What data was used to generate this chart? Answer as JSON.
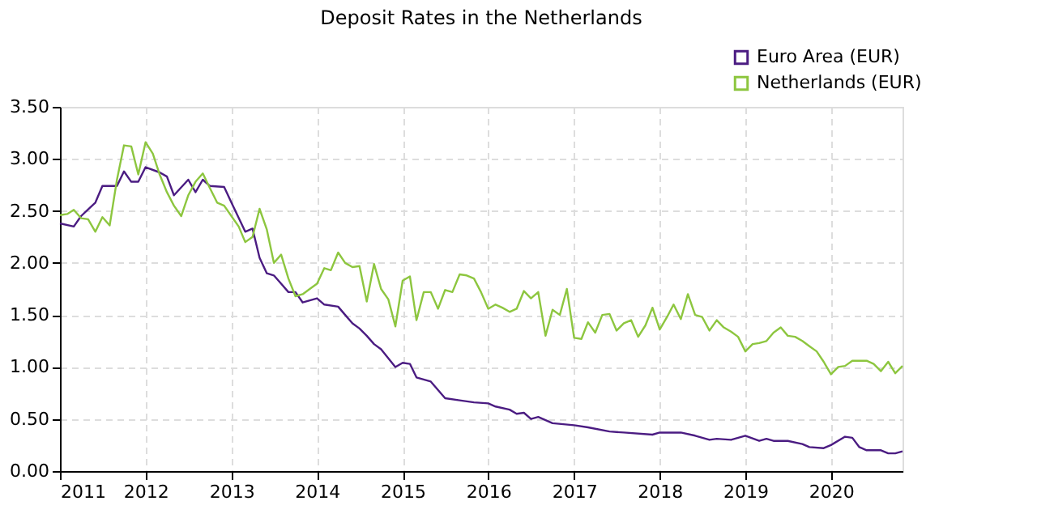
{
  "chart_data": {
    "type": "line",
    "title": "Deposit Rates in the Netherlands",
    "series": [
      {
        "name": "Euro Area (EUR)",
        "color": "#4b1c82",
        "x": [
          "2011-01",
          "2011-03",
          "2011-04",
          "2011-06",
          "2011-07",
          "2011-09",
          "2011-10",
          "2011-11",
          "2011-12",
          "2012-01",
          "2012-03",
          "2012-04",
          "2012-05",
          "2012-07",
          "2012-08",
          "2012-09",
          "2012-10",
          "2012-12",
          "2013-01",
          "2013-03",
          "2013-04",
          "2013-05",
          "2013-06",
          "2013-07",
          "2013-08",
          "2013-09",
          "2013-10",
          "2013-11",
          "2014-01",
          "2014-02",
          "2014-04",
          "2014-05",
          "2014-06",
          "2014-07",
          "2014-08",
          "2014-09",
          "2014-10",
          "2014-12",
          "2015-01",
          "2015-02",
          "2015-03",
          "2015-05",
          "2015-07",
          "2015-09",
          "2015-11",
          "2016-01",
          "2016-02",
          "2016-04",
          "2016-05",
          "2016-06",
          "2016-07",
          "2016-08",
          "2016-10",
          "2017-01",
          "2017-03",
          "2017-06",
          "2017-08",
          "2017-12",
          "2018-01",
          "2018-04",
          "2018-06",
          "2018-08",
          "2018-09",
          "2018-11",
          "2019-01",
          "2019-03",
          "2019-04",
          "2019-05",
          "2019-07",
          "2019-09",
          "2019-10",
          "2019-12",
          "2020-01",
          "2020-03",
          "2020-04",
          "2020-05",
          "2020-06",
          "2020-08",
          "2020-09",
          "2020-10",
          "2020-11"
        ],
        "values": [
          2.38,
          2.35,
          2.45,
          2.58,
          2.74,
          2.74,
          2.88,
          2.78,
          2.78,
          2.92,
          2.87,
          2.83,
          2.65,
          2.8,
          2.68,
          2.8,
          2.74,
          2.73,
          2.58,
          2.3,
          2.33,
          2.05,
          1.9,
          1.88,
          1.8,
          1.72,
          1.72,
          1.62,
          1.66,
          1.6,
          1.58,
          1.5,
          1.42,
          1.37,
          1.3,
          1.22,
          1.17,
          1.0,
          1.04,
          1.03,
          0.9,
          0.86,
          0.7,
          0.68,
          0.66,
          0.65,
          0.62,
          0.59,
          0.55,
          0.56,
          0.5,
          0.52,
          0.46,
          0.44,
          0.42,
          0.38,
          0.37,
          0.35,
          0.37,
          0.37,
          0.34,
          0.3,
          0.31,
          0.3,
          0.34,
          0.29,
          0.31,
          0.29,
          0.29,
          0.26,
          0.23,
          0.22,
          0.25,
          0.33,
          0.32,
          0.23,
          0.2,
          0.2,
          0.17,
          0.17,
          0.19
        ]
      },
      {
        "name": "Netherlands (EUR)",
        "color": "#8dc63f",
        "x": [
          "2011-01",
          "2011-02",
          "2011-03",
          "2011-04",
          "2011-05",
          "2011-06",
          "2011-07",
          "2011-08",
          "2011-09",
          "2011-10",
          "2011-11",
          "2011-12",
          "2012-01",
          "2012-02",
          "2012-03",
          "2012-04",
          "2012-05",
          "2012-06",
          "2012-07",
          "2012-08",
          "2012-09",
          "2012-10",
          "2012-11",
          "2012-12",
          "2013-01",
          "2013-02",
          "2013-03",
          "2013-04",
          "2013-05",
          "2013-06",
          "2013-07",
          "2013-08",
          "2013-09",
          "2013-10",
          "2013-11",
          "2013-12",
          "2014-01",
          "2014-02",
          "2014-03",
          "2014-04",
          "2014-05",
          "2014-06",
          "2014-07",
          "2014-08",
          "2014-09",
          "2014-10",
          "2014-11",
          "2014-12",
          "2015-01",
          "2015-02",
          "2015-03",
          "2015-04",
          "2015-05",
          "2015-06",
          "2015-07",
          "2015-08",
          "2015-09",
          "2015-10",
          "2015-11",
          "2015-12",
          "2016-01",
          "2016-02",
          "2016-03",
          "2016-04",
          "2016-05",
          "2016-06",
          "2016-07",
          "2016-08",
          "2016-09",
          "2016-10",
          "2016-11",
          "2016-12",
          "2017-01",
          "2017-02",
          "2017-03",
          "2017-04",
          "2017-05",
          "2017-06",
          "2017-07",
          "2017-08",
          "2017-09",
          "2017-10",
          "2017-11",
          "2017-12",
          "2018-01",
          "2018-02",
          "2018-03",
          "2018-04",
          "2018-05",
          "2018-06",
          "2018-07",
          "2018-08",
          "2018-09",
          "2018-10",
          "2018-11",
          "2018-12",
          "2019-01",
          "2019-02",
          "2019-03",
          "2019-04",
          "2019-05",
          "2019-06",
          "2019-07",
          "2019-08",
          "2019-09",
          "2019-10",
          "2019-11",
          "2019-12",
          "2020-01",
          "2020-02",
          "2020-03",
          "2020-04",
          "2020-05",
          "2020-06",
          "2020-07",
          "2020-08",
          "2020-09",
          "2020-10",
          "2020-11"
        ],
        "values": [
          2.46,
          2.47,
          2.51,
          2.43,
          2.42,
          2.3,
          2.44,
          2.36,
          2.8,
          3.13,
          3.12,
          2.85,
          3.16,
          3.05,
          2.85,
          2.68,
          2.55,
          2.45,
          2.65,
          2.78,
          2.86,
          2.72,
          2.58,
          2.55,
          2.45,
          2.35,
          2.2,
          2.25,
          2.52,
          2.32,
          2.0,
          2.08,
          1.85,
          1.68,
          1.7,
          1.75,
          1.8,
          1.95,
          1.93,
          2.1,
          2.0,
          1.96,
          1.97,
          1.63,
          1.99,
          1.75,
          1.65,
          1.39,
          1.83,
          1.87,
          1.45,
          1.72,
          1.72,
          1.56,
          1.74,
          1.72,
          1.89,
          1.88,
          1.85,
          1.72,
          1.56,
          1.6,
          1.57,
          1.53,
          1.56,
          1.73,
          1.66,
          1.72,
          1.3,
          1.55,
          1.5,
          1.75,
          1.28,
          1.27,
          1.43,
          1.33,
          1.5,
          1.51,
          1.35,
          1.42,
          1.45,
          1.29,
          1.4,
          1.57,
          1.36,
          1.48,
          1.6,
          1.46,
          1.7,
          1.5,
          1.48,
          1.35,
          1.45,
          1.38,
          1.34,
          1.29,
          1.15,
          1.22,
          1.23,
          1.25,
          1.33,
          1.38,
          1.3,
          1.29,
          1.25,
          1.2,
          1.15,
          1.05,
          0.93,
          1.0,
          1.01,
          1.06,
          1.06,
          1.06,
          1.03,
          0.96,
          1.05,
          0.94,
          1.01
        ]
      }
    ],
    "xlim": [
      "2011-01",
      "2020-11"
    ],
    "xticks": [
      "2011",
      "2012",
      "2013",
      "2014",
      "2015",
      "2016",
      "2017",
      "2018",
      "2019",
      "2020"
    ],
    "ylim": [
      0,
      3.5
    ],
    "yticks": [
      {
        "value": 0,
        "label": "0.00"
      },
      {
        "value": 0.5,
        "label": "0.50"
      },
      {
        "value": 1,
        "label": "1.00"
      },
      {
        "value": 1.5,
        "label": "1.50"
      },
      {
        "value": 2,
        "label": "2.00"
      },
      {
        "value": 2.5,
        "label": "2.50"
      },
      {
        "value": 3,
        "label": "3.00"
      },
      {
        "value": 3.5,
        "label": "3.50"
      }
    ],
    "grid": true,
    "legend": "top right",
    "marker": "none",
    "line_style": "solid"
  }
}
